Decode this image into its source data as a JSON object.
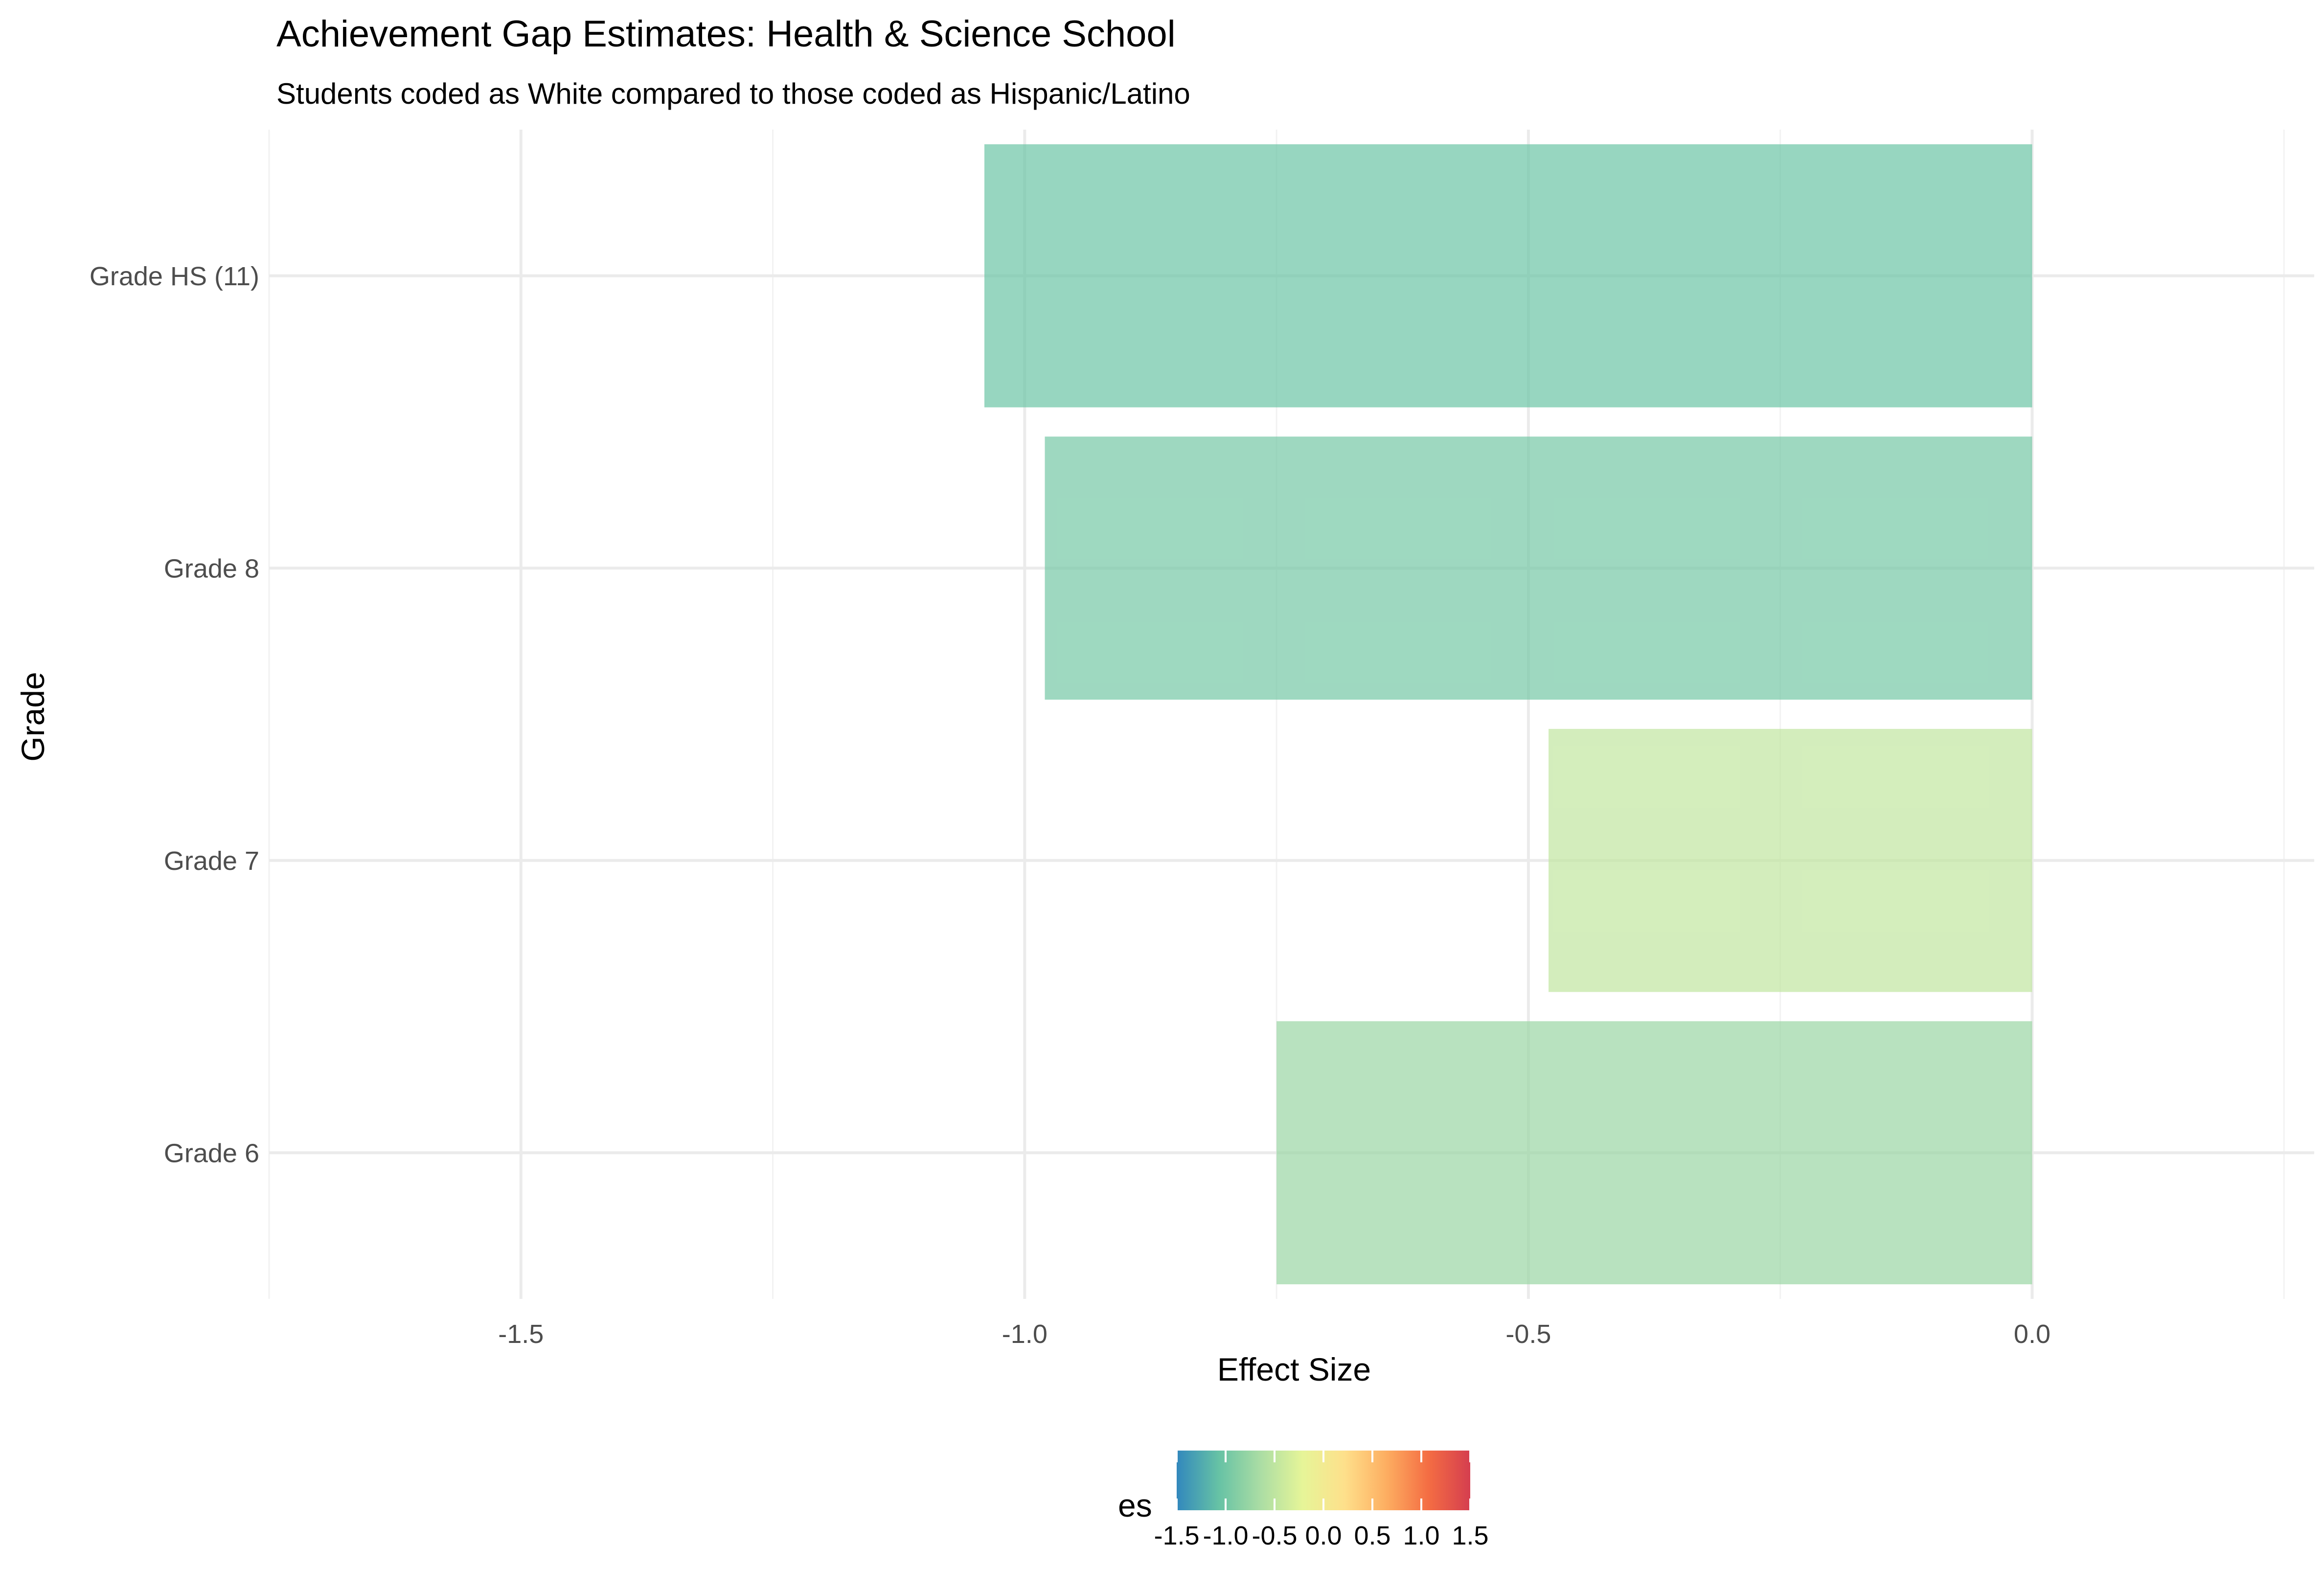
{
  "chart_data": {
    "type": "bar",
    "orientation": "horizontal",
    "title": "Achievement Gap Estimates: Health & Science School",
    "subtitle": "Students coded as White compared to those coded as Hispanic/Latino",
    "xlabel": "Effect Size",
    "ylabel": "Grade",
    "categories": [
      "Grade 6",
      "Grade 7",
      "Grade 8",
      "Grade HS (11)"
    ],
    "values": [
      -0.75,
      -0.48,
      -0.98,
      -1.04
    ],
    "xlim": [
      -1.75,
      0.28
    ],
    "x_ticks": [
      -1.5,
      -1.0,
      -0.5,
      0.0
    ],
    "x_tick_labels": [
      "-1.5",
      "-1.0",
      "-0.5",
      "0.0"
    ],
    "grid": true,
    "legend": {
      "title": "es",
      "position": "bottom",
      "range": [
        -1.5,
        1.5
      ],
      "ticks": [
        -1.5,
        -1.0,
        -0.5,
        0.0,
        0.5,
        1.0,
        1.5
      ],
      "tick_labels": [
        "-1.5",
        "-1.0",
        "-0.5",
        "0.0",
        "0.5",
        "1.0",
        "1.5"
      ],
      "palette": [
        "#3288bd",
        "#66c2a5",
        "#abdda4",
        "#e6f598",
        "#fee08b",
        "#fdae61",
        "#f46d43",
        "#d53e4f"
      ]
    }
  }
}
